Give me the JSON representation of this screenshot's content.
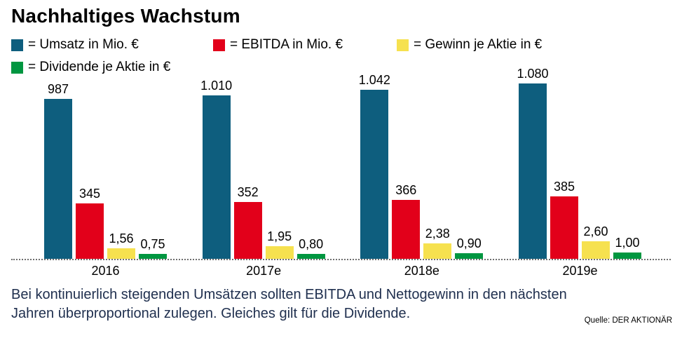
{
  "title": "Nachhaltiges Wachstum",
  "legend": [
    {
      "key": "umsatz",
      "label": "= Umsatz in Mio. €",
      "color": "#0e5e7e"
    },
    {
      "key": "ebitda",
      "label": "= EBITDA in Mio. €",
      "color": "#e2001a"
    },
    {
      "key": "gewinn",
      "label": "= Gewinn je Aktie in €",
      "color": "#f6e14f"
    },
    {
      "key": "dividende",
      "label": "= Dividende je Aktie in €",
      "color": "#009640"
    }
  ],
  "chart_data": {
    "type": "bar",
    "title": "Nachhaltiges Wachstum",
    "categories": [
      "2016",
      "2017e",
      "2018e",
      "2019e"
    ],
    "series": [
      {
        "key": "umsatz",
        "name": "Umsatz in Mio. €",
        "unit": "Mio. €",
        "color": "#0e5e7e",
        "values": [
          987,
          1010,
          1042,
          1080
        ],
        "value_labels": [
          "987",
          "1.010",
          "1.042",
          "1.080"
        ]
      },
      {
        "key": "ebitda",
        "name": "EBITDA in Mio. €",
        "unit": "Mio. €",
        "color": "#e2001a",
        "values": [
          345,
          352,
          366,
          385
        ],
        "value_labels": [
          "345",
          "352",
          "366",
          "385"
        ]
      },
      {
        "key": "gewinn",
        "name": "Gewinn je Aktie in €",
        "unit": "€",
        "color": "#f6e14f",
        "values": [
          1.56,
          1.95,
          2.38,
          2.6
        ],
        "value_labels": [
          "1,56",
          "1,95",
          "2,38",
          "2,60"
        ]
      },
      {
        "key": "dividende",
        "name": "Dividende je Aktie in €",
        "unit": "€",
        "color": "#009640",
        "values": [
          0.75,
          0.8,
          0.9,
          1.0
        ],
        "value_labels": [
          "0,75",
          "0,80",
          "0,90",
          "1,00"
        ]
      }
    ],
    "legend_position": "top",
    "grid": false,
    "y_axis_visible": false
  },
  "caption": {
    "line1": "Bei kontinuierlich steigenden Umsätzen sollten EBITDA und Nettogewinn in den nächsten",
    "line2": "Jahren überproportional zulegen. Gleiches gilt für die Dividende."
  },
  "source": "Quelle: DER AKTIONÄR"
}
